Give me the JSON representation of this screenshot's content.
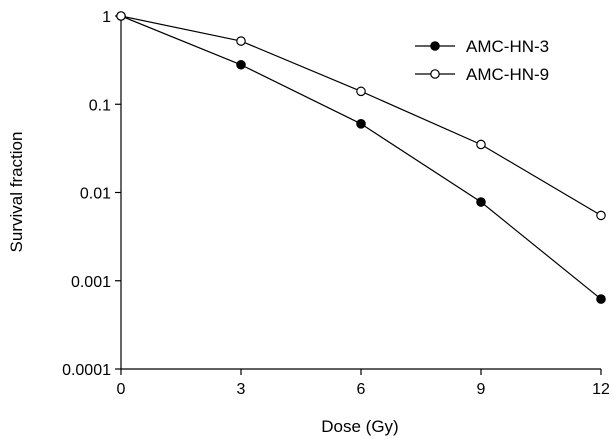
{
  "chart_data": {
    "type": "line",
    "title": "",
    "xlabel": "Dose (Gy)",
    "ylabel": "Survival fraction",
    "xscale": "linear",
    "yscale": "log",
    "xlim": [
      0,
      12
    ],
    "ylim": [
      0.0001,
      1
    ],
    "x_ticks": [
      0,
      3,
      6,
      9,
      12
    ],
    "x_tick_labels": [
      "0",
      "3",
      "6",
      "9",
      "12"
    ],
    "y_ticks": [
      0.0001,
      0.001,
      0.01,
      0.1,
      1
    ],
    "y_tick_labels": [
      "0.0001",
      "0.001",
      "0.01",
      "0.1",
      "1"
    ],
    "grid": false,
    "legend_position": "top-right",
    "x": [
      0,
      3,
      6,
      9,
      12
    ],
    "series": [
      {
        "name": "AMC-HN-3",
        "marker": "filled-circle",
        "color": "#000000",
        "values": [
          1,
          0.28,
          0.06,
          0.0078,
          0.00062
        ]
      },
      {
        "name": "AMC-HN-9",
        "marker": "open-circle",
        "color": "#000000",
        "values": [
          1,
          0.52,
          0.14,
          0.035,
          0.0055
        ]
      }
    ]
  }
}
